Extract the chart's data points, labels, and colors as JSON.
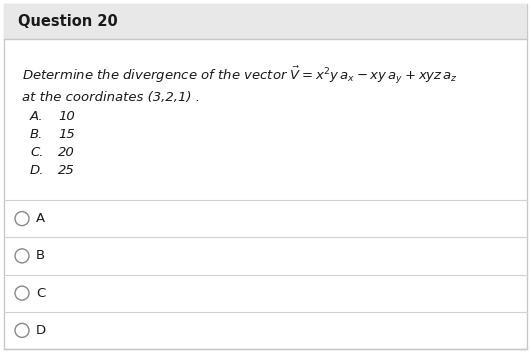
{
  "title": "Question 20",
  "bg_header": "#e8e8e8",
  "bg_body": "#ffffff",
  "border_color": "#c8c8c8",
  "line_color": "#d0d0d0",
  "title_fontsize": 10.5,
  "question_line1": "Determine the divergence of the vector $\\vec{V} = x^2y\\,a_x - xy\\,a_y + xyz\\,a_z$",
  "question_line2": "at the coordinates (3,2,1) .",
  "options": [
    {
      "label": "A.",
      "value": "10"
    },
    {
      "label": "B.",
      "value": "15"
    },
    {
      "label": "C.",
      "value": "20"
    },
    {
      "label": "D.",
      "value": "25"
    }
  ],
  "radio_options": [
    "A",
    "B",
    "C",
    "D"
  ],
  "text_color": "#1a1a1a",
  "radio_color": "#888888"
}
